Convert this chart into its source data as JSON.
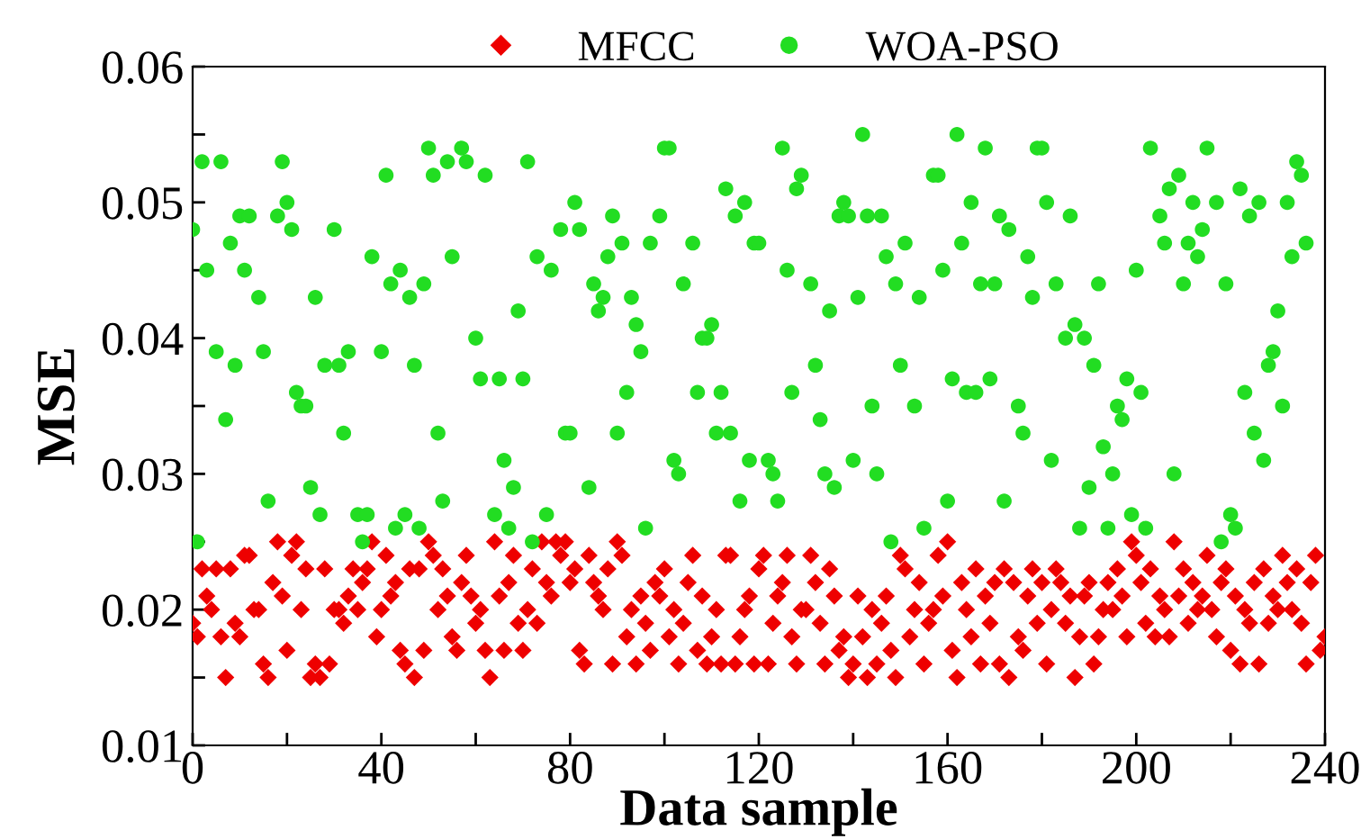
{
  "chart_data": {
    "type": "scatter",
    "xlabel": "Data sample",
    "ylabel": "MSE",
    "xlim": [
      0,
      240
    ],
    "ylim": [
      0.01,
      0.06
    ],
    "xticks": [
      0,
      {
        "value": 20,
        "label": null
      },
      40,
      {
        "value": 60,
        "label": null
      },
      80,
      {
        "value": 100,
        "label": null
      },
      120,
      {
        "value": 140,
        "label": null
      },
      160,
      {
        "value": 180,
        "label": null
      },
      200,
      {
        "value": 220,
        "label": null
      },
      240
    ],
    "yticks": [
      0.01,
      {
        "value": 0.015,
        "label": null
      },
      0.02,
      {
        "value": 0.025,
        "label": null
      },
      0.03,
      {
        "value": 0.035,
        "label": null
      },
      0.04,
      {
        "value": 0.045,
        "label": null
      },
      0.05,
      {
        "value": 0.055,
        "label": null
      },
      0.06
    ],
    "grid": false,
    "legend": "top",
    "series": [
      {
        "name": "MFCC",
        "color": "#ee0000",
        "marker": "diamond",
        "x": [
          0,
          1,
          2,
          3,
          4,
          5,
          6,
          7,
          8,
          9,
          10,
          11,
          12,
          13,
          14,
          15,
          16,
          17,
          18,
          19,
          20,
          21,
          22,
          23,
          24,
          25,
          26,
          27,
          28,
          29,
          30,
          31,
          32,
          33,
          34,
          35,
          36,
          37,
          38,
          39,
          40,
          41,
          42,
          43,
          44,
          45,
          46,
          47,
          48,
          49,
          50,
          51,
          52,
          53,
          54,
          55,
          56,
          57,
          58,
          59,
          60,
          61,
          62,
          63,
          64,
          65,
          66,
          67,
          68,
          69,
          70,
          71,
          72,
          73,
          74,
          75,
          76,
          77,
          78,
          79,
          80,
          81,
          82,
          83,
          84,
          85,
          86,
          87,
          88,
          89,
          90,
          91,
          92,
          93,
          94,
          95,
          96,
          97,
          98,
          99,
          100,
          101,
          102,
          103,
          104,
          105,
          106,
          107,
          108,
          109,
          110,
          111,
          112,
          113,
          114,
          115,
          116,
          117,
          118,
          119,
          120,
          121,
          122,
          123,
          124,
          125,
          126,
          127,
          128,
          129,
          130,
          131,
          132,
          133,
          134,
          135,
          136,
          137,
          138,
          139,
          140,
          141,
          142,
          143,
          144,
          145,
          146,
          147,
          148,
          149,
          150,
          151,
          152,
          153,
          154,
          155,
          156,
          157,
          158,
          159,
          160,
          161,
          162,
          163,
          164,
          165,
          166,
          167,
          168,
          169,
          170,
          171,
          172,
          173,
          174,
          175,
          176,
          177,
          178,
          179,
          180,
          181,
          182,
          183,
          184,
          185,
          186,
          187,
          188,
          189,
          190,
          191,
          192,
          193,
          194,
          195,
          196,
          197,
          198,
          199,
          200,
          201,
          202,
          203,
          204,
          205,
          206,
          207,
          208,
          209,
          210,
          211,
          212,
          213,
          214,
          215,
          216,
          217,
          218,
          219,
          220,
          221,
          222,
          223,
          224,
          225,
          226,
          227,
          228,
          229,
          230,
          231,
          232,
          233,
          234,
          235,
          236,
          237,
          238,
          239,
          240
        ],
        "values": [
          0.019,
          0.018,
          0.023,
          0.021,
          0.02,
          0.023,
          0.018,
          0.015,
          0.023,
          0.019,
          0.018,
          0.024,
          0.024,
          0.02,
          0.02,
          0.016,
          0.015,
          0.022,
          0.025,
          0.021,
          0.017,
          0.024,
          0.025,
          0.02,
          0.023,
          0.015,
          0.016,
          0.015,
          0.023,
          0.016,
          0.02,
          0.02,
          0.019,
          0.021,
          0.023,
          0.02,
          0.022,
          0.023,
          0.025,
          0.018,
          0.02,
          0.024,
          0.021,
          0.022,
          0.017,
          0.016,
          0.023,
          0.015,
          0.023,
          0.017,
          0.025,
          0.024,
          0.02,
          0.023,
          0.021,
          0.018,
          0.017,
          0.022,
          0.024,
          0.021,
          0.019,
          0.02,
          0.017,
          0.015,
          0.025,
          0.021,
          0.017,
          0.022,
          0.024,
          0.019,
          0.017,
          0.02,
          0.023,
          0.019,
          0.025,
          0.022,
          0.021,
          0.025,
          0.024,
          0.025,
          0.022,
          0.023,
          0.017,
          0.016,
          0.024,
          0.022,
          0.021,
          0.02,
          0.023,
          0.016,
          0.025,
          0.024,
          0.018,
          0.02,
          0.016,
          0.021,
          0.019,
          0.017,
          0.022,
          0.021,
          0.023,
          0.018,
          0.02,
          0.016,
          0.019,
          0.022,
          0.024,
          0.017,
          0.021,
          0.016,
          0.018,
          0.02,
          0.016,
          0.024,
          0.024,
          0.016,
          0.018,
          0.02,
          0.021,
          0.016,
          0.023,
          0.024,
          0.016,
          0.019,
          0.021,
          0.022,
          0.024,
          0.018,
          0.016,
          0.02,
          0.02,
          0.024,
          0.022,
          0.019,
          0.016,
          0.023,
          0.021,
          0.017,
          0.018,
          0.015,
          0.016,
          0.021,
          0.018,
          0.015,
          0.02,
          0.016,
          0.019,
          0.021,
          0.017,
          0.015,
          0.024,
          0.023,
          0.018,
          0.02,
          0.022,
          0.016,
          0.019,
          0.02,
          0.024,
          0.021,
          0.025,
          0.017,
          0.015,
          0.022,
          0.02,
          0.018,
          0.023,
          0.016,
          0.021,
          0.019,
          0.022,
          0.016,
          0.023,
          0.015,
          0.022,
          0.018,
          0.017,
          0.021,
          0.023,
          0.019,
          0.022,
          0.016,
          0.02,
          0.023,
          0.022,
          0.019,
          0.021,
          0.015,
          0.018,
          0.021,
          0.022,
          0.016,
          0.018,
          0.02,
          0.022,
          0.02,
          0.023,
          0.021,
          0.018,
          0.025,
          0.024,
          0.022,
          0.019,
          0.023,
          0.018,
          0.021,
          0.02,
          0.018,
          0.025,
          0.021,
          0.023,
          0.019,
          0.022,
          0.02,
          0.021,
          0.024,
          0.02,
          0.018,
          0.022,
          0.023,
          0.017,
          0.021,
          0.016,
          0.02,
          0.019,
          0.022,
          0.016,
          0.023,
          0.019,
          0.021,
          0.02,
          0.024,
          0.022,
          0.02,
          0.023,
          0.019,
          0.016,
          0.022,
          0.024,
          0.017,
          0.018
        ]
      },
      {
        "name": "WOA-PSO",
        "color": "#22dd22",
        "marker": "circle",
        "x": [
          0,
          1,
          2,
          3,
          5,
          6,
          7,
          8,
          9,
          10,
          11,
          12,
          14,
          15,
          16,
          18,
          19,
          20,
          21,
          22,
          23,
          24,
          25,
          26,
          27,
          28,
          30,
          31,
          32,
          33,
          35,
          36,
          37,
          38,
          40,
          41,
          42,
          43,
          44,
          45,
          46,
          47,
          48,
          49,
          50,
          51,
          52,
          53,
          54,
          55,
          57,
          58,
          60,
          61,
          62,
          64,
          65,
          66,
          67,
          68,
          69,
          70,
          71,
          72,
          73,
          75,
          76,
          78,
          79,
          80,
          81,
          82,
          84,
          85,
          86,
          87,
          88,
          89,
          90,
          91,
          92,
          93,
          94,
          95,
          96,
          97,
          99,
          100,
          101,
          102,
          103,
          104,
          106,
          107,
          108,
          109,
          110,
          111,
          112,
          113,
          114,
          115,
          116,
          117,
          118,
          119,
          120,
          122,
          123,
          124,
          125,
          126,
          127,
          128,
          129,
          131,
          132,
          133,
          134,
          135,
          136,
          137,
          138,
          139,
          140,
          141,
          142,
          143,
          144,
          145,
          146,
          147,
          148,
          149,
          150,
          151,
          153,
          154,
          155,
          157,
          158,
          159,
          160,
          161,
          162,
          163,
          164,
          165,
          166,
          167,
          168,
          169,
          170,
          171,
          172,
          173,
          175,
          176,
          177,
          178,
          179,
          180,
          181,
          182,
          183,
          185,
          186,
          187,
          188,
          189,
          190,
          191,
          192,
          193,
          194,
          195,
          196,
          197,
          198,
          199,
          200,
          201,
          202,
          203,
          205,
          206,
          207,
          208,
          209,
          210,
          211,
          212,
          213,
          214,
          215,
          217,
          218,
          219,
          220,
          221,
          222,
          223,
          224,
          225,
          226,
          227,
          228,
          229,
          230,
          231,
          232,
          233,
          234,
          235,
          236
        ],
        "values": [
          0.048,
          0.025,
          0.053,
          0.045,
          0.039,
          0.053,
          0.034,
          0.047,
          0.038,
          0.049,
          0.045,
          0.049,
          0.043,
          0.039,
          0.028,
          0.049,
          0.053,
          0.05,
          0.048,
          0.036,
          0.035,
          0.035,
          0.029,
          0.043,
          0.027,
          0.038,
          0.048,
          0.038,
          0.033,
          0.039,
          0.027,
          0.025,
          0.027,
          0.046,
          0.039,
          0.052,
          0.044,
          0.026,
          0.045,
          0.027,
          0.043,
          0.038,
          0.026,
          0.044,
          0.054,
          0.052,
          0.033,
          0.028,
          0.053,
          0.046,
          0.054,
          0.053,
          0.04,
          0.037,
          0.052,
          0.027,
          0.037,
          0.031,
          0.026,
          0.029,
          0.042,
          0.037,
          0.053,
          0.025,
          0.046,
          0.027,
          0.045,
          0.048,
          0.033,
          0.033,
          0.05,
          0.048,
          0.029,
          0.044,
          0.042,
          0.043,
          0.046,
          0.049,
          0.033,
          0.047,
          0.036,
          0.043,
          0.041,
          0.039,
          0.026,
          0.047,
          0.049,
          0.054,
          0.054,
          0.031,
          0.03,
          0.044,
          0.047,
          0.036,
          0.04,
          0.04,
          0.041,
          0.033,
          0.036,
          0.051,
          0.033,
          0.049,
          0.028,
          0.05,
          0.031,
          0.047,
          0.047,
          0.031,
          0.03,
          0.028,
          0.054,
          0.045,
          0.036,
          0.051,
          0.052,
          0.044,
          0.038,
          0.034,
          0.03,
          0.042,
          0.029,
          0.049,
          0.05,
          0.049,
          0.031,
          0.043,
          0.055,
          0.049,
          0.035,
          0.03,
          0.049,
          0.046,
          0.025,
          0.044,
          0.038,
          0.047,
          0.035,
          0.043,
          0.026,
          0.052,
          0.052,
          0.045,
          0.028,
          0.037,
          0.055,
          0.047,
          0.036,
          0.05,
          0.036,
          0.044,
          0.054,
          0.037,
          0.044,
          0.049,
          0.028,
          0.048,
          0.035,
          0.033,
          0.046,
          0.043,
          0.054,
          0.054,
          0.05,
          0.031,
          0.044,
          0.04,
          0.049,
          0.041,
          0.026,
          0.04,
          0.029,
          0.038,
          0.044,
          0.032,
          0.026,
          0.03,
          0.035,
          0.034,
          0.037,
          0.027,
          0.045,
          0.036,
          0.026,
          0.054,
          0.049,
          0.047,
          0.051,
          0.03,
          0.052,
          0.044,
          0.047,
          0.05,
          0.046,
          0.048,
          0.054,
          0.05,
          0.025,
          0.044,
          0.027,
          0.026,
          0.051,
          0.036,
          0.049,
          0.033,
          0.05,
          0.031,
          0.038,
          0.039,
          0.042,
          0.035,
          0.05,
          0.046,
          0.053,
          0.052,
          0.047
        ]
      }
    ]
  }
}
